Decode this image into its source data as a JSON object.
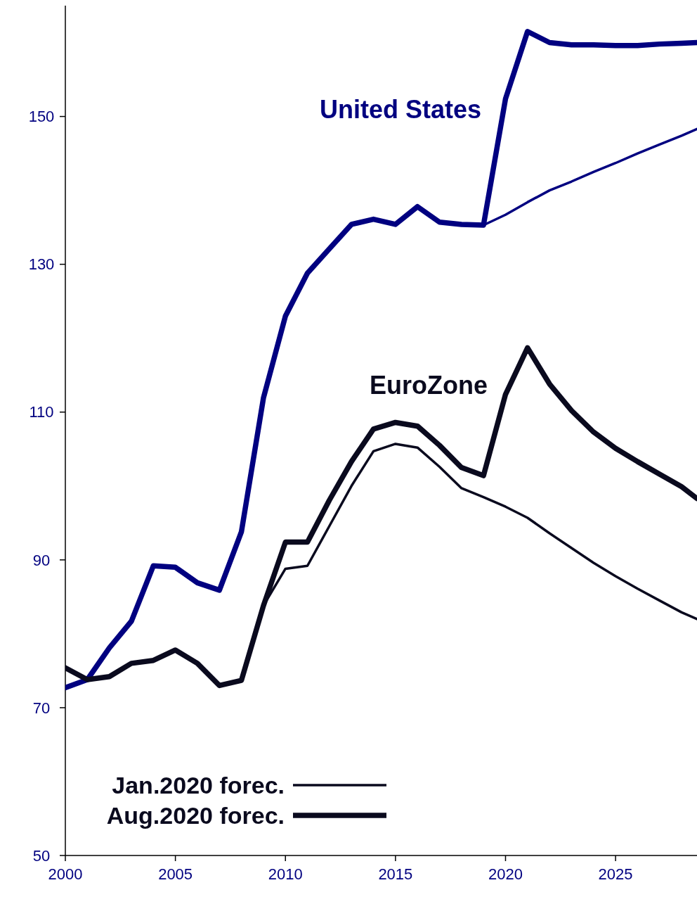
{
  "chart_data": {
    "type": "line",
    "x": [
      2000,
      2001,
      2002,
      2003,
      2004,
      2005,
      2006,
      2007,
      2008,
      2009,
      2010,
      2011,
      2012,
      2013,
      2014,
      2015,
      2016,
      2017,
      2018,
      2019,
      2020,
      2021,
      2022,
      2023,
      2024,
      2025,
      2026,
      2027,
      2028,
      2028.7
    ],
    "series": [
      {
        "color": "#000080",
        "values": [
          72.7,
          73.8,
          78.1,
          81.7,
          89.2,
          89.0,
          86.9,
          85.9,
          93.8,
          111.9,
          123.0,
          128.8,
          132.1,
          135.4,
          136.1,
          135.4,
          137.8,
          135.7,
          135.4,
          135.3,
          136.7,
          138.4,
          140.0,
          141.2,
          142.5,
          143.7,
          145.0,
          146.2,
          147.4,
          148.3
        ]
      },
      {
        "color": "#000080",
        "values": [
          72.7,
          73.8,
          78.1,
          81.7,
          89.2,
          89.0,
          86.9,
          85.9,
          93.8,
          111.9,
          123.0,
          128.8,
          132.1,
          135.4,
          136.1,
          135.4,
          137.8,
          135.7,
          135.4,
          135.3,
          152.4,
          161.5,
          160.0,
          159.7,
          159.7,
          159.6,
          159.6,
          159.8,
          159.9,
          160.0
        ]
      },
      {
        "name": "Jan.2020 forec.",
        "color": "#0a0a1e",
        "values": [
          75.4,
          73.8,
          74.2,
          76.0,
          76.4,
          77.8,
          76.0,
          73.0,
          73.7,
          83.8,
          88.8,
          89.2,
          94.6,
          100.0,
          104.7,
          105.7,
          105.2,
          102.6,
          99.7,
          98.5,
          97.2,
          95.7,
          93.6,
          91.6,
          89.6,
          87.8,
          86.1,
          84.5,
          82.9,
          82.0
        ]
      },
      {
        "name": "Aug.2020 forec.",
        "color": "#0a0a1e",
        "values": [
          75.4,
          73.8,
          74.2,
          76.0,
          76.4,
          77.8,
          76.0,
          73.0,
          73.7,
          83.8,
          92.4,
          92.4,
          98.1,
          103.3,
          107.7,
          108.6,
          108.1,
          105.5,
          102.5,
          101.4,
          112.4,
          118.7,
          113.8,
          110.2,
          107.3,
          105.1,
          103.3,
          101.6,
          99.9,
          98.3
        ]
      }
    ],
    "annotations": [
      "United States",
      "EuroZone"
    ],
    "xlim": [
      2000,
      2028.7
    ],
    "xticks": [
      2000,
      2005,
      2010,
      2015,
      2020,
      2025
    ],
    "ylim": [
      50,
      165
    ],
    "yticks": [
      50,
      70,
      90,
      110,
      130,
      150
    ],
    "grid": false,
    "legend": "bottom left",
    "marker": "none",
    "line_style": "solid"
  }
}
